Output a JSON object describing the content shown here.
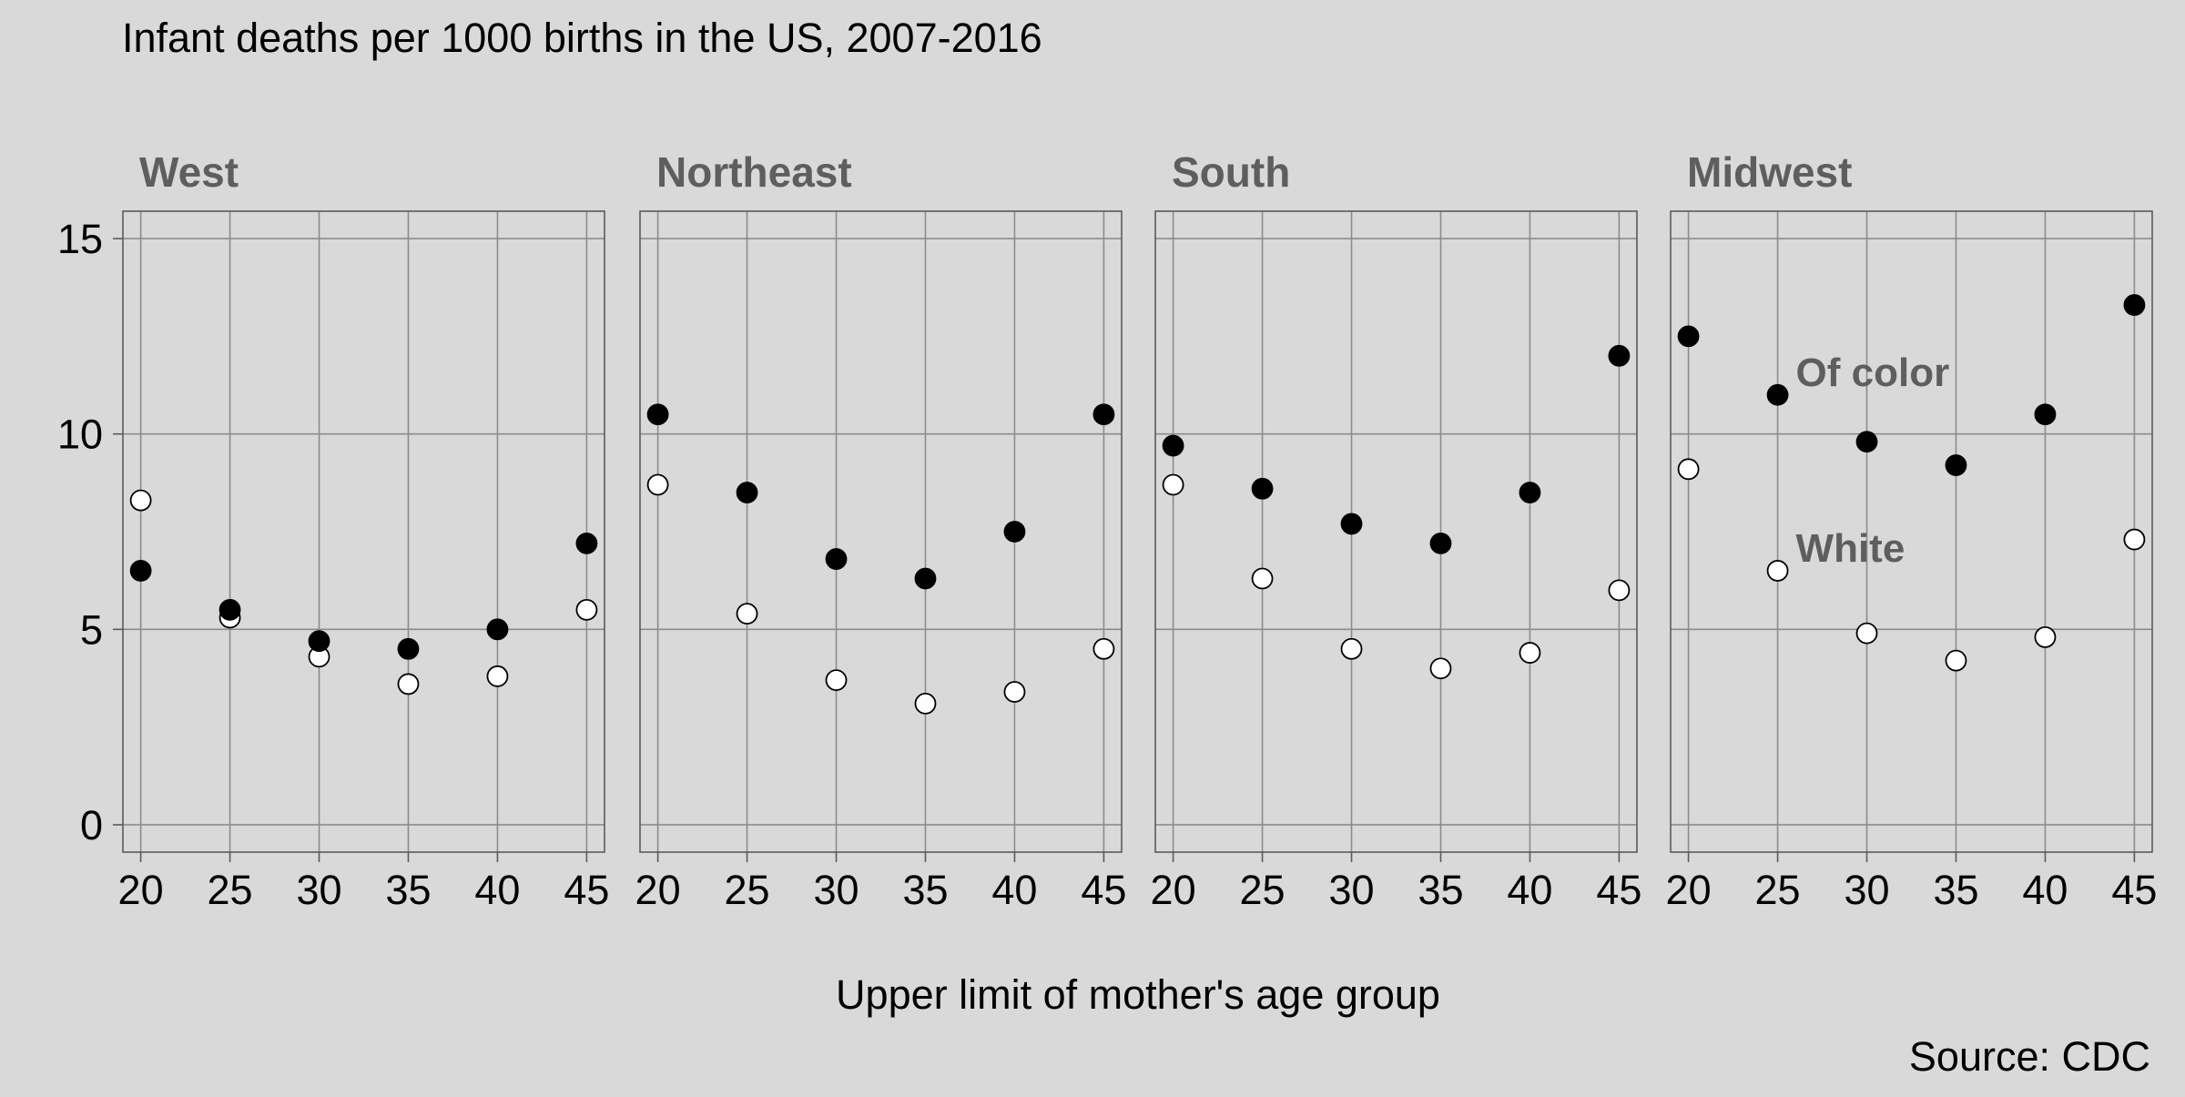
{
  "chart_data": {
    "type": "scatter",
    "title": "Infant deaths per 1000 births in the US, 2007-2016",
    "xlabel": "Upper limit of mother's age group",
    "ylabel": "",
    "caption": "Source: CDC",
    "x": [
      20,
      25,
      30,
      35,
      40,
      45
    ],
    "xlim": [
      19,
      46
    ],
    "ylim": [
      -0.7,
      15.7
    ],
    "y_ticks": [
      0,
      5,
      10,
      15
    ],
    "x_ticks": [
      20,
      25,
      30,
      35,
      40,
      45
    ],
    "grid": true,
    "series_styles": {
      "of_color": {
        "fill": "#000000",
        "stroke": "#000000"
      },
      "white": {
        "fill": "#ffffff",
        "stroke": "#000000"
      }
    },
    "panels": [
      {
        "region": "West",
        "of_color": [
          6.5,
          5.5,
          4.7,
          4.5,
          5.0,
          7.2
        ],
        "white": [
          8.3,
          5.3,
          4.3,
          3.6,
          3.8,
          5.5
        ]
      },
      {
        "region": "Northeast",
        "of_color": [
          10.5,
          8.5,
          6.8,
          6.3,
          7.5,
          10.5
        ],
        "white": [
          8.7,
          5.4,
          3.7,
          3.1,
          3.4,
          4.5
        ]
      },
      {
        "region": "South",
        "of_color": [
          9.7,
          8.6,
          7.7,
          7.2,
          8.5,
          12.0
        ],
        "white": [
          8.7,
          6.3,
          4.5,
          4.0,
          4.4,
          6.0
        ]
      },
      {
        "region": "Midwest",
        "of_color": [
          12.5,
          11.0,
          9.8,
          9.2,
          10.5,
          13.3
        ],
        "white": [
          9.1,
          6.5,
          4.9,
          4.2,
          4.8,
          7.3
        ]
      }
    ],
    "annotations": [
      {
        "panel": "Midwest",
        "text": "Of color",
        "x": 25,
        "y": 11.6
      },
      {
        "panel": "Midwest",
        "text": "White",
        "x": 25,
        "y": 7.1
      }
    ]
  }
}
